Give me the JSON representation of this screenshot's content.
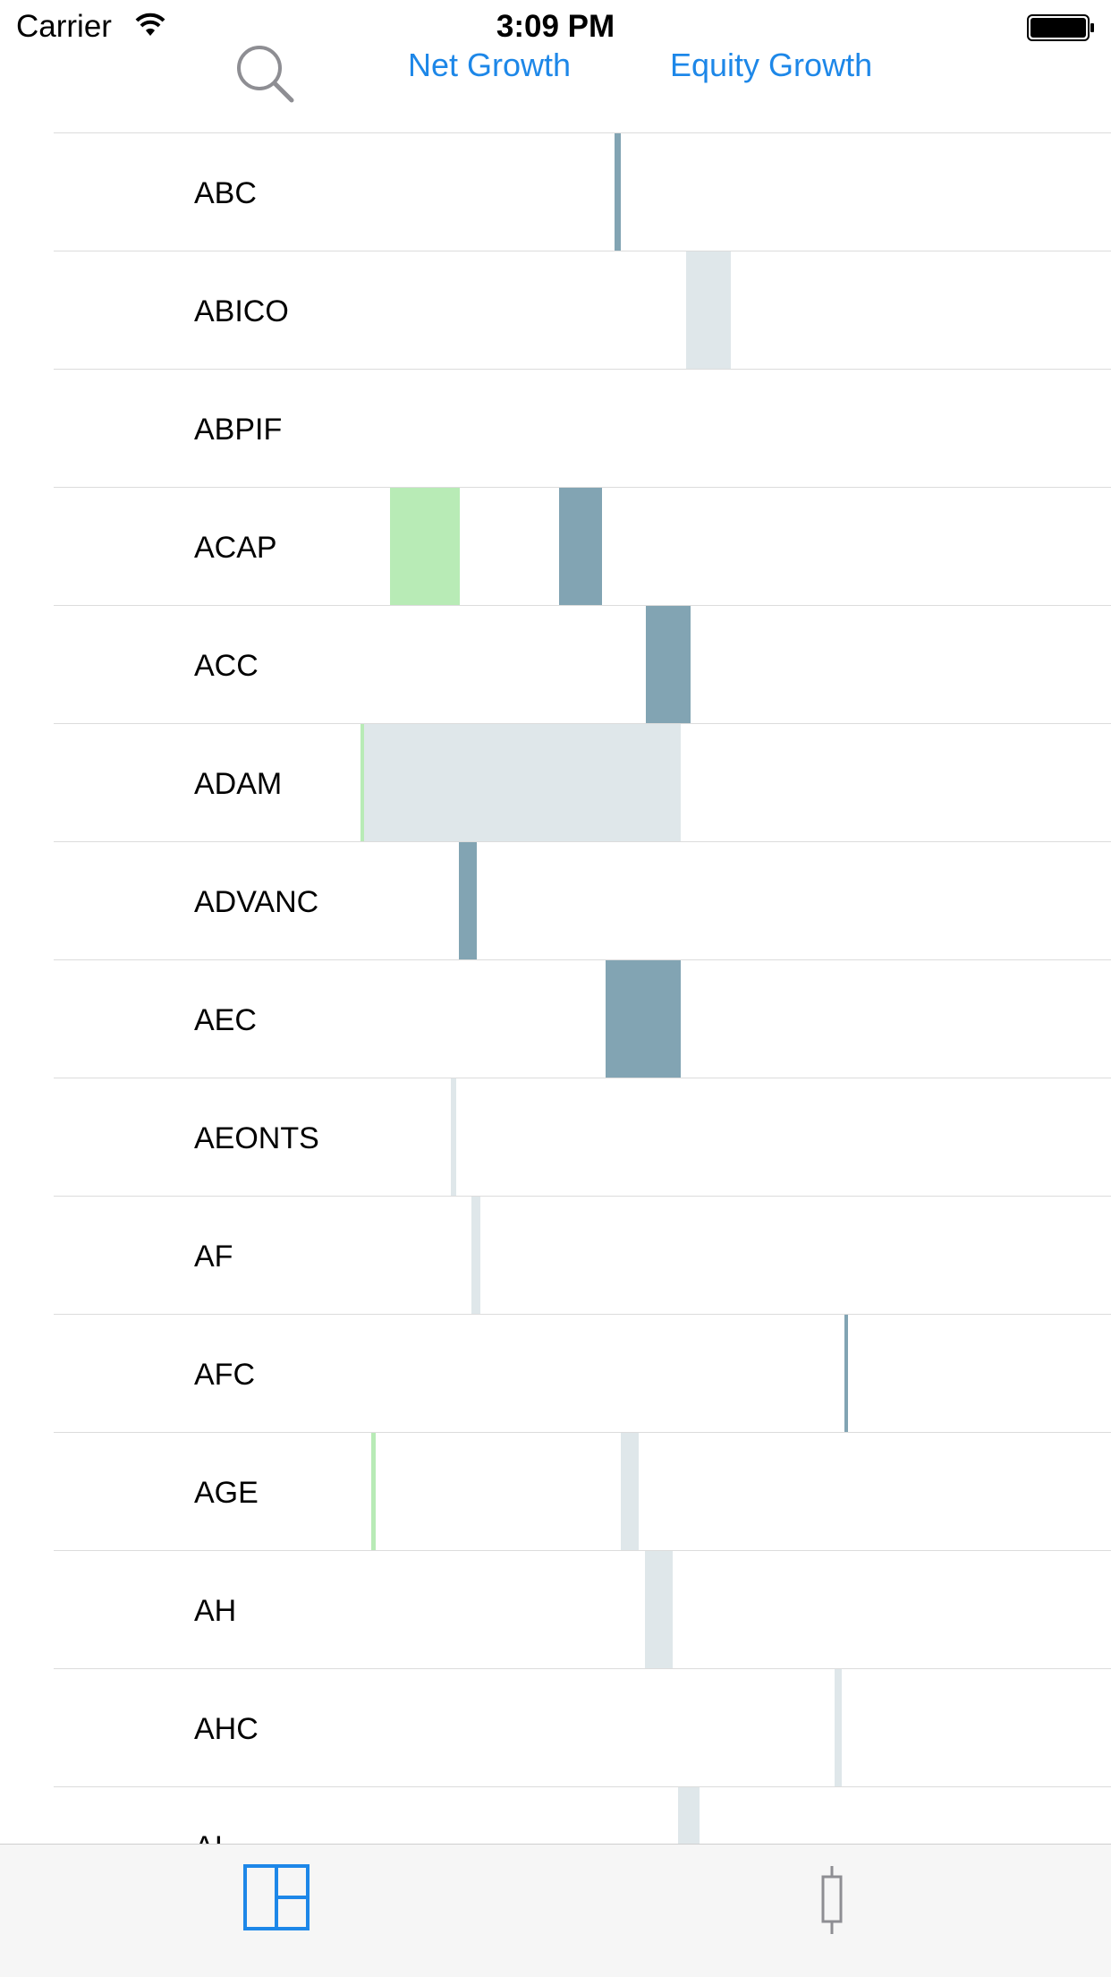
{
  "status_bar": {
    "carrier": "Carrier",
    "time": "3:09 PM"
  },
  "nav": {
    "net_growth": "Net Growth",
    "equity_growth": "Equity Growth",
    "search_icon": "search-icon"
  },
  "colors": {
    "accent": "#1d87e8",
    "bar_dark": "#82a4b3",
    "bar_light": "#dfe7ea",
    "bar_green": "#b8ebb6",
    "divider": "#dcdcdc",
    "tabbar_bg": "#f6f6f6"
  },
  "rows": [
    {
      "label": "ABC"
    },
    {
      "label": "ABICO"
    },
    {
      "label": "ABPIF"
    },
    {
      "label": "ACAP"
    },
    {
      "label": "ACC"
    },
    {
      "label": "ADAM"
    },
    {
      "label": "ADVANC"
    },
    {
      "label": "AEC"
    },
    {
      "label": "AEONTS"
    },
    {
      "label": "AF"
    },
    {
      "label": "AFC"
    },
    {
      "label": "AGE"
    },
    {
      "label": "AH"
    },
    {
      "label": "AHC"
    },
    {
      "label": "AI"
    }
  ],
  "tab_bar": {
    "items": [
      {
        "icon": "grid-layout-icon",
        "selected": true
      },
      {
        "icon": "candlestick-icon",
        "selected": false
      }
    ]
  }
}
